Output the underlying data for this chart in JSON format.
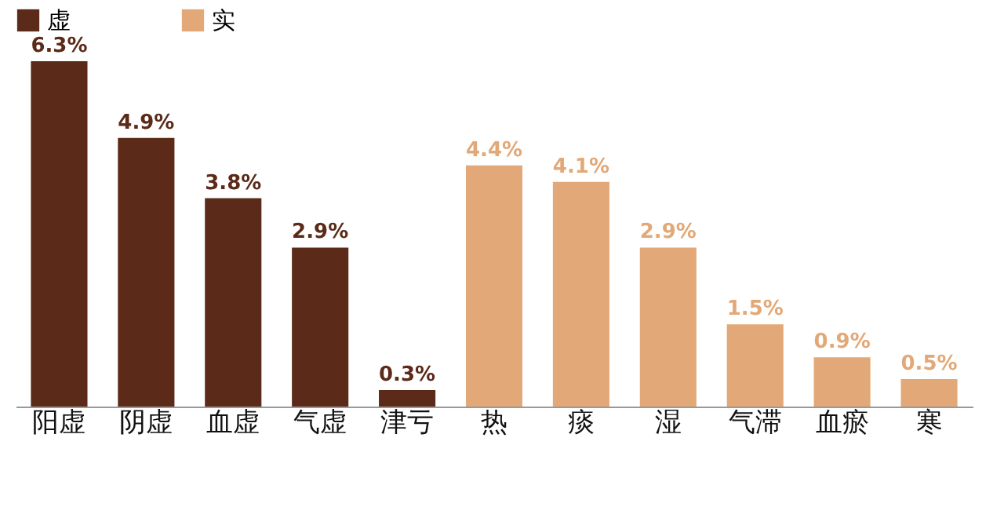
{
  "chart_data": {
    "type": "bar",
    "categories": [
      "阳虚",
      "阴虚",
      "血虚",
      "气虚",
      "津亏",
      "热",
      "痰",
      "湿",
      "气滞",
      "血瘀",
      "寒"
    ],
    "series": [
      {
        "name": "虚",
        "color": "#5b2a18",
        "values": [
          6.3,
          4.9,
          3.8,
          2.9,
          0.3,
          null,
          null,
          null,
          null,
          null,
          null
        ],
        "value_labels": [
          "6.3%",
          "4.9%",
          "3.8%",
          "2.9%",
          "0.3%",
          null,
          null,
          null,
          null,
          null,
          null
        ]
      },
      {
        "name": "实",
        "color": "#e3a877",
        "values": [
          null,
          null,
          null,
          null,
          null,
          4.4,
          4.1,
          2.9,
          1.5,
          0.9,
          0.5
        ],
        "value_labels": [
          null,
          null,
          null,
          null,
          null,
          "4.4%",
          "4.1%",
          "2.9%",
          "1.5%",
          "0.9%",
          "0.5%"
        ]
      }
    ],
    "legend": "top",
    "tick_labels": "x"
  }
}
